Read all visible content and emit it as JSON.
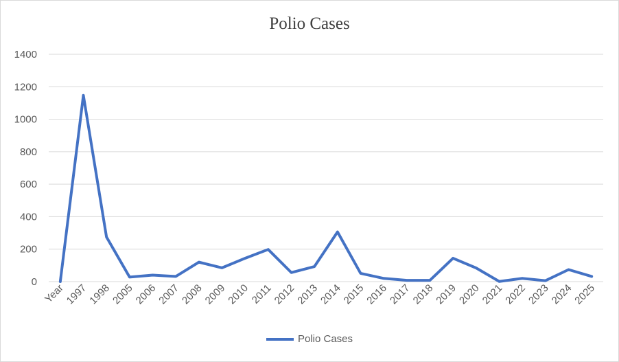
{
  "chart_data": {
    "type": "line",
    "title": "Polio Cases",
    "xlabel": "",
    "ylabel": "",
    "categories": [
      "Year",
      "1997",
      "1998",
      "2005",
      "2006",
      "2007",
      "2008",
      "2009",
      "2010",
      "2011",
      "2012",
      "2013",
      "2014",
      "2015",
      "2016",
      "2017",
      "2018",
      "2019",
      "2020",
      "2021",
      "2022",
      "2023",
      "2024",
      "2025"
    ],
    "series": [
      {
        "name": "Polio Cases",
        "color": "#4472c4",
        "values": [
          0,
          1147,
          275,
          28,
          40,
          32,
          120,
          85,
          144,
          198,
          56,
          93,
          306,
          51,
          20,
          8,
          8,
          144,
          84,
          1,
          20,
          6,
          74,
          32
        ]
      }
    ],
    "ylim": [
      0,
      1400
    ],
    "yticks": [
      0,
      200,
      400,
      600,
      800,
      1000,
      1200,
      1400
    ],
    "grid": true,
    "legend_position": "bottom"
  }
}
